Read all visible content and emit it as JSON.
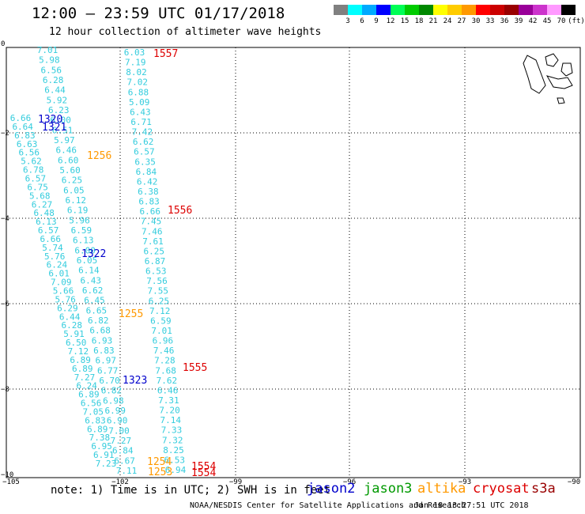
{
  "header": {
    "title": "12:00 — 23:59 UTC 01/17/2018",
    "subtitle": "12 hour collection of altimeter wave heights"
  },
  "legend": {
    "unit": "(ft)",
    "colors": [
      "#808080",
      "#00ffff",
      "#00aaff",
      "#0000ff",
      "#00ff55",
      "#00cc00",
      "#008800",
      "#ffff00",
      "#ffcc00",
      "#ff9900",
      "#ff0000",
      "#cc0000",
      "#990000",
      "#990099",
      "#cc33cc",
      "#ff99ff",
      "#000000"
    ],
    "labels": [
      "3",
      "6",
      "9",
      "12",
      "15",
      "18",
      "21",
      "24",
      "27",
      "30",
      "33",
      "36",
      "39",
      "42",
      "45",
      "70"
    ]
  },
  "axes": {
    "y_ticks": [
      "0",
      "−2",
      "−4",
      "−6",
      "−8",
      "−10"
    ],
    "x_ticks": [
      "−105",
      "−102",
      "−99",
      "−96",
      "−93",
      "−90"
    ]
  },
  "pass_labels": [
    {
      "text": "1557",
      "color": "#dd0000"
    },
    {
      "text": "1320",
      "color": "#0000cc"
    },
    {
      "text": "1321",
      "color": "#0000cc"
    },
    {
      "text": "1256",
      "color": "#ff9900"
    },
    {
      "text": "1556",
      "color": "#dd0000"
    },
    {
      "text": "1322",
      "color": "#0000cc"
    },
    {
      "text": "1255",
      "color": "#ff9900"
    },
    {
      "text": "1555",
      "color": "#dd0000"
    },
    {
      "text": "1323",
      "color": "#0000cc"
    },
    {
      "text": "1254",
      "color": "#ff9900"
    },
    {
      "text": "1253",
      "color": "#ff9900"
    },
    {
      "text": "1554",
      "color": "#dd0000"
    },
    {
      "text": "1554",
      "color": "#dd0000"
    }
  ],
  "tracks": [
    {
      "values": [
        "7.01",
        "5.98",
        "6.56",
        "6.28",
        "6.44",
        "5.92",
        "6.23",
        "6.00",
        "6.51",
        "5.97",
        "6.46",
        "6.60",
        "5.60",
        "6.25",
        "6.05",
        "6.12",
        "6.19",
        "5.96",
        "6.59",
        "6.13",
        "6.00",
        "6.05",
        "6.14",
        "6.43",
        "6.62",
        "6.45",
        "6.65",
        "6.82",
        "6.68",
        "6.93",
        "6.83",
        "6.97",
        "6.77",
        "6.70",
        "6.82",
        "6.98",
        "6.99",
        "6.90",
        "7.00",
        "7.27",
        "6.84",
        "6.67",
        "7.11"
      ]
    },
    {
      "values": [
        "6.66",
        "6.64",
        "6.83",
        "6.63",
        "6.56",
        "5.62",
        "6.78",
        "6.57",
        "6.75",
        "5.68",
        "6.27",
        "6.48",
        "6.13",
        "6.57",
        "6.66",
        "5.74",
        "5.76",
        "6.24",
        "6.01",
        "7.09",
        "5.66",
        "5.76",
        "6.29",
        "6.44",
        "6.28",
        "5.91",
        "6.50",
        "7.12",
        "6.89",
        "6.89",
        "7.27",
        "6.24",
        "6.89",
        "6.56",
        "7.05",
        "6.83",
        "6.89",
        "7.38",
        "6.95",
        "6.91",
        "7.23"
      ]
    },
    {
      "values": [
        "6.03",
        "7.19",
        "8.02",
        "7.02",
        "6.88",
        "5.09",
        "6.43",
        "6.71",
        "7.42",
        "6.62",
        "6.57",
        "6.35",
        "6.84",
        "6.42",
        "6.38",
        "6.83",
        "6.66",
        "7.45",
        "7.46",
        "7.61",
        "6.25",
        "6.87",
        "6.53",
        "7.56",
        "7.55",
        "6.25",
        "7.12",
        "6.59",
        "7.01",
        "6.96",
        "7.46",
        "7.28",
        "7.68",
        "7.62",
        "6.46",
        "7.31",
        "7.20",
        "7.14",
        "7.33",
        "7.32",
        "8.25",
        "6.53",
        "6.94"
      ]
    }
  ],
  "notes": {
    "note": "note:  1) Time is in UTC;  2) SWH is in feet",
    "satellites": [
      {
        "name": "jason2",
        "color": "#0000cc"
      },
      {
        "name": "jason3",
        "color": "#009900"
      },
      {
        "name": "altika",
        "color": "#ff9900"
      },
      {
        "name": "cryosat",
        "color": "#dd0000"
      },
      {
        "name": "s3a",
        "color": "#990000"
      }
    ],
    "footer_left": "NOAA/NESDIS Center for Satellite Applications and Research",
    "footer_right": "Jan 18 13:27:51 UTC 2018"
  }
}
